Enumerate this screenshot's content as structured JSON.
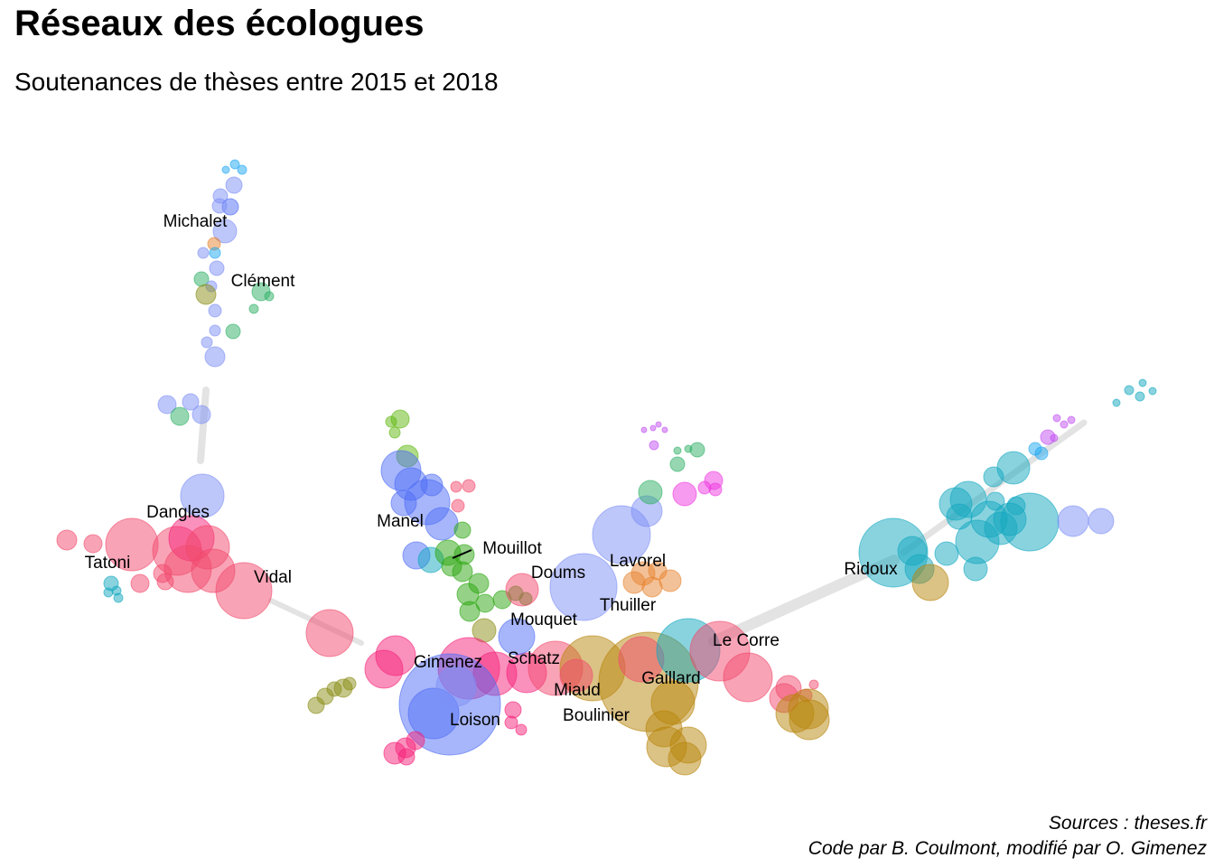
{
  "title": "Réseaux des écologues",
  "subtitle": "Soutenances de thèses entre 2015 et 2018",
  "caption": {
    "source": "Sources : theses.fr",
    "credit": "Code par B. Coulmont, modifié par O. Gimenez"
  },
  "labels": [
    "Michalet",
    "Clément",
    "Dangles",
    "Tatoni",
    "Vidal",
    "Manel",
    "Mouillot",
    "Doums",
    "Lavorel",
    "Thuiller",
    "Mouquet",
    "Schatz",
    "Gimenez",
    "Miaud",
    "Gaillard",
    "Le Corre",
    "Boulinier",
    "Loison",
    "Ridoux"
  ]
}
